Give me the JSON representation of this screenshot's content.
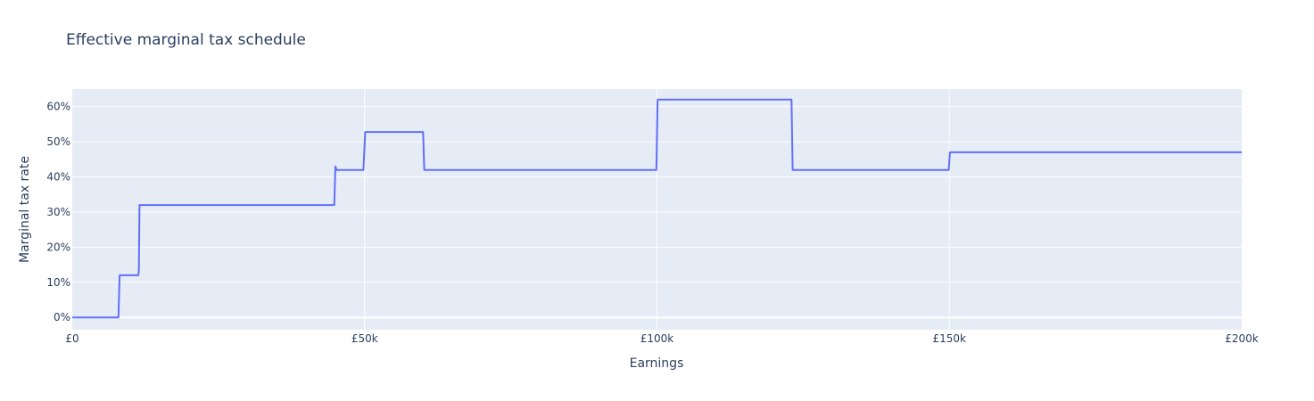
{
  "chart_data": {
    "type": "line",
    "title": "Effective marginal tax schedule",
    "xlabel": "Earnings",
    "ylabel": "Marginal tax rate",
    "xlim": [
      0,
      200000
    ],
    "ylim": [
      -0.035,
      0.65
    ],
    "x_ticks": [
      0,
      50000,
      100000,
      150000,
      200000
    ],
    "x_tick_labels": [
      "£0",
      "£50k",
      "£100k",
      "£150k",
      "£200k"
    ],
    "y_ticks": [
      0,
      0.1,
      0.2,
      0.3,
      0.4,
      0.5,
      0.6
    ],
    "y_tick_labels": [
      "0%",
      "10%",
      "20%",
      "30%",
      "40%",
      "50%",
      "60%"
    ],
    "grid": true,
    "colors": {
      "plot_bg": "#e5ecf6",
      "grid": "#ffffff",
      "line": "#636efa",
      "text": "#2a3f5f"
    },
    "series": [
      {
        "x": [
          0,
          7900,
          8100,
          11300,
          11400,
          11500,
          44800,
          45000,
          45200,
          49800,
          50100,
          60000,
          60200,
          99900,
          100100,
          123000,
          123200,
          149900,
          150100,
          200000
        ],
        "y": [
          0,
          0,
          0.12,
          0.12,
          0.135,
          0.32,
          0.32,
          0.43,
          0.42,
          0.42,
          0.528,
          0.528,
          0.42,
          0.42,
          0.62,
          0.62,
          0.42,
          0.42,
          0.47,
          0.47
        ]
      }
    ]
  }
}
